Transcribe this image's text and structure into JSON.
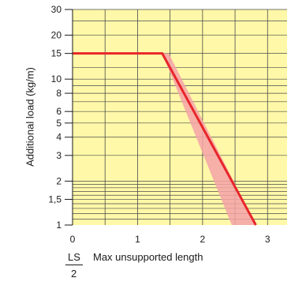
{
  "chart_data": {
    "type": "line",
    "xlabel_top": "LS",
    "xlabel_bottom": "2",
    "xlabel_text": "Max unsupported length",
    "ylabel": "Additional load (kg/m)",
    "x_scale": "linear",
    "y_scale": "log",
    "xlim": [
      0,
      3.3
    ],
    "ylim": [
      1,
      30
    ],
    "x_ticks": [
      0,
      1,
      2,
      3
    ],
    "y_ticks": [
      1,
      1.5,
      2,
      3,
      4,
      5,
      6,
      8,
      10,
      15,
      20,
      30
    ],
    "y_tick_labels": [
      "1",
      "1,5",
      "2",
      "3",
      "4",
      "5",
      "6",
      "8",
      "10",
      "15",
      "20",
      "30"
    ],
    "grid": true,
    "colors": {
      "background": "#fff8a8",
      "grid": "#4a4a4a",
      "line": "#e8262a",
      "band": "#f4a3a8"
    },
    "series": [
      {
        "x": [
          0,
          1.38,
          2.82
        ],
        "y": [
          15,
          15,
          1
        ]
      }
    ],
    "band": {
      "x": [
        1.38,
        1.48,
        2.82,
        2.45
      ],
      "y": [
        15,
        15,
        1,
        1
      ]
    }
  }
}
